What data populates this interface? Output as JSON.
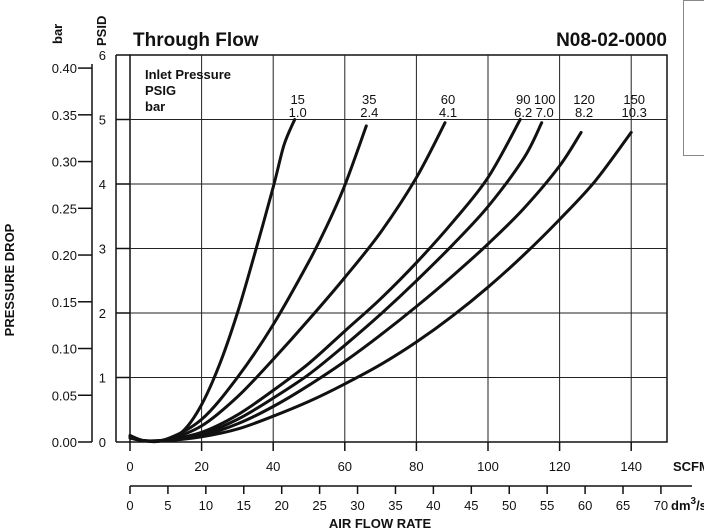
{
  "chart_data": {
    "type": "line",
    "title": "Through Flow",
    "part_number": "N08-02-0000",
    "x_axis_primary": {
      "unit": "SCFM",
      "range": [
        0,
        150
      ],
      "ticks": [
        "0",
        "20",
        "40",
        "60",
        "80",
        "100",
        "120",
        "140"
      ],
      "tick_values": [
        0,
        20,
        40,
        60,
        80,
        100,
        120,
        140
      ]
    },
    "x_axis_secondary": {
      "unit_base": "dm",
      "unit_sup": "3",
      "unit_tail": "/s",
      "range": [
        0,
        70.8
      ],
      "ticks": [
        "0",
        "5",
        "10",
        "15",
        "20",
        "25",
        "30",
        "35",
        "40",
        "45",
        "50",
        "55",
        "60",
        "65",
        "70"
      ],
      "tick_values": [
        0,
        5,
        10,
        15,
        20,
        25,
        30,
        35,
        40,
        45,
        50,
        55,
        60,
        65,
        70
      ]
    },
    "xlabel": "AIR FLOW RATE",
    "y_axis_primary": {
      "unit": "PSID",
      "range": [
        0,
        6
      ],
      "ticks": [
        "0",
        "1",
        "2",
        "3",
        "4",
        "5",
        "6"
      ],
      "tick_values": [
        0,
        1,
        2,
        3,
        4,
        5,
        6
      ]
    },
    "y_axis_secondary": {
      "unit": "bar",
      "range": [
        0,
        0.414
      ],
      "ticks": [
        "0.00",
        "0.05",
        "0.10",
        "0.15",
        "0.20",
        "0.25",
        "0.30",
        "0.35",
        "0.40"
      ],
      "tick_values": [
        0,
        0.05,
        0.1,
        0.15,
        0.2,
        0.25,
        0.3,
        0.35,
        0.4
      ]
    },
    "ylabel": "PRESSURE DROP",
    "legend": {
      "title_lines": [
        "Inlet Pressure",
        "PSIG",
        "bar"
      ]
    },
    "grid": true,
    "series": [
      {
        "psig": "15",
        "bar": "1.0",
        "x": [
          0,
          4,
          10,
          15,
          20,
          25,
          30,
          35,
          40,
          43,
          46
        ],
        "y": [
          0.1,
          0.02,
          0.04,
          0.18,
          0.58,
          1.2,
          2.0,
          2.95,
          3.95,
          4.6,
          5.0
        ]
      },
      {
        "psig": "35",
        "bar": "2.4",
        "x": [
          0,
          4,
          10,
          20,
          30,
          40,
          50,
          55,
          60,
          66
        ],
        "y": [
          0.1,
          0.02,
          0.04,
          0.35,
          1.0,
          1.82,
          2.8,
          3.35,
          3.98,
          4.9
        ]
      },
      {
        "psig": "60",
        "bar": "4.1",
        "x": [
          0,
          4,
          10,
          20,
          30,
          40,
          50,
          60,
          70,
          80,
          88
        ],
        "y": [
          0.1,
          0.02,
          0.03,
          0.25,
          0.7,
          1.28,
          1.9,
          2.55,
          3.25,
          4.1,
          4.95
        ]
      },
      {
        "psig": "90",
        "bar": "6.2",
        "x": [
          0,
          4,
          10,
          20,
          30,
          40,
          50,
          60,
          70,
          80,
          90,
          100,
          109
        ],
        "y": [
          0.08,
          0.02,
          0.03,
          0.15,
          0.42,
          0.8,
          1.22,
          1.72,
          2.22,
          2.78,
          3.4,
          4.1,
          5.0
        ]
      },
      {
        "psig": "100",
        "bar": "7.0",
        "x": [
          0,
          4,
          10,
          20,
          30,
          40,
          50,
          60,
          70,
          80,
          90,
          100,
          110,
          115
        ],
        "y": [
          0.08,
          0.02,
          0.03,
          0.12,
          0.35,
          0.68,
          1.05,
          1.5,
          1.98,
          2.5,
          3.05,
          3.65,
          4.4,
          4.95
        ]
      },
      {
        "psig": "120",
        "bar": "8.2",
        "x": [
          0,
          4,
          10,
          20,
          30,
          40,
          50,
          60,
          70,
          80,
          90,
          100,
          110,
          120,
          126
        ],
        "y": [
          0.07,
          0.02,
          0.03,
          0.1,
          0.28,
          0.55,
          0.88,
          1.25,
          1.66,
          2.1,
          2.57,
          3.07,
          3.62,
          4.28,
          4.8
        ]
      },
      {
        "psig": "150",
        "bar": "10.3",
        "x": [
          0,
          4,
          10,
          20,
          30,
          40,
          50,
          60,
          70,
          80,
          90,
          100,
          110,
          120,
          130,
          140
        ],
        "y": [
          0.06,
          0.02,
          0.02,
          0.08,
          0.2,
          0.4,
          0.63,
          0.9,
          1.2,
          1.55,
          1.95,
          2.4,
          2.9,
          3.45,
          4.05,
          4.8
        ]
      }
    ]
  }
}
